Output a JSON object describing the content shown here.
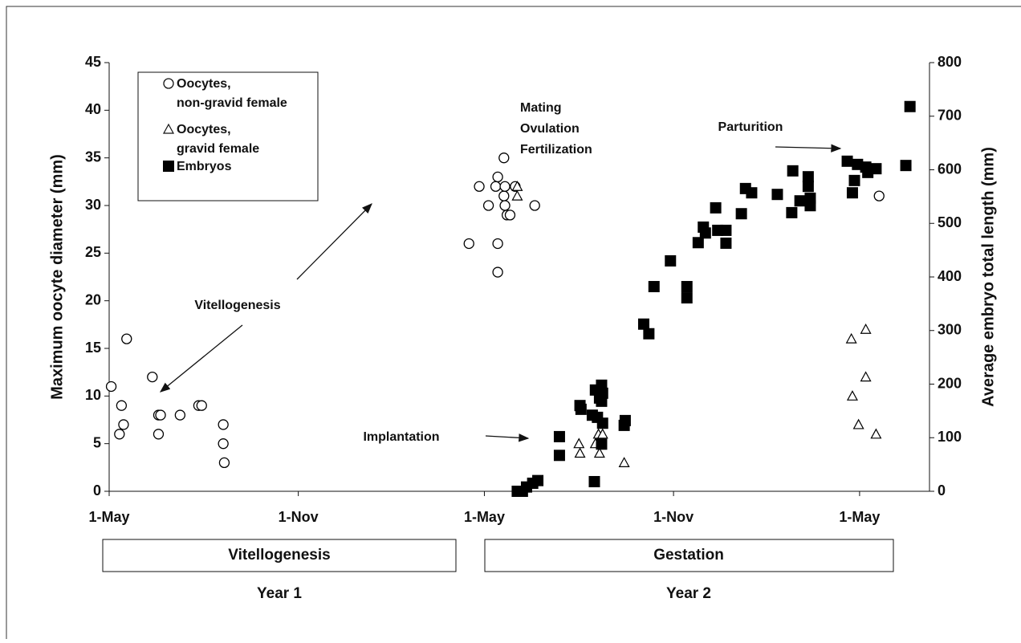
{
  "chart_data": {
    "type": "scatter",
    "ylabel": "Maximum oocyte diameter (mm)",
    "y2label": "Average embryo total length (mm)",
    "xlim": [
      0,
      798
    ],
    "xticks": [
      {
        "value": 0,
        "label": "1-May"
      },
      {
        "value": 184,
        "label": "1-Nov"
      },
      {
        "value": 365,
        "label": "1-May"
      },
      {
        "value": 549,
        "label": "1-Nov"
      },
      {
        "value": 730,
        "label": "1-May"
      }
    ],
    "ylim": [
      0,
      45
    ],
    "yticks": [
      0,
      5,
      10,
      15,
      20,
      25,
      30,
      35,
      40,
      45
    ],
    "y2lim": [
      0,
      800
    ],
    "y2ticks": [
      0,
      100,
      200,
      300,
      400,
      500,
      600,
      700,
      800
    ],
    "legend": "upper left",
    "series": [
      {
        "name": "Oocytes, non-gravid female",
        "marker": "circle",
        "color": "#000000",
        "x": [
          2,
          12,
          14,
          10,
          17,
          42,
          48,
          50,
          48,
          69,
          87,
          90,
          111,
          111,
          112,
          350,
          360,
          369,
          376,
          378,
          384,
          378,
          378,
          384,
          385,
          385,
          387,
          390,
          395,
          414,
          749
        ],
        "values": [
          11,
          9,
          7,
          6,
          16,
          12,
          8,
          8,
          6,
          8,
          9,
          9,
          7,
          5,
          3,
          26,
          32,
          30,
          32,
          33,
          35,
          26,
          23,
          31,
          32,
          30,
          29,
          29,
          32,
          30,
          31
        ]
      },
      {
        "name": "Oocytes, gravid female",
        "marker": "triangle",
        "color": "#000000",
        "x": [
          397,
          397,
          457,
          458,
          473,
          476,
          477,
          480,
          501,
          722,
          736,
          723,
          736,
          729,
          746
        ],
        "values": [
          31,
          32,
          5,
          4,
          5,
          6,
          4,
          6,
          3,
          16,
          17,
          10,
          12,
          7,
          6
        ]
      },
      {
        "name": "Embryos",
        "marker": "square",
        "color": "#000000",
        "axis": "y2",
        "x": [
          397,
          402,
          406,
          412,
          417,
          438,
          438,
          458,
          459,
          470,
          473,
          475,
          477,
          479,
          479,
          480,
          480,
          479,
          472,
          501,
          502,
          520,
          525,
          530,
          546,
          562,
          562,
          573,
          578,
          580,
          590,
          592,
          600,
          600,
          615,
          619,
          625,
          650,
          664,
          665,
          672,
          680,
          680,
          682,
          682,
          718,
          723,
          725,
          728,
          736,
          738,
          746,
          775,
          779
        ],
        "values": [
          0,
          0,
          8,
          15,
          20,
          102,
          67,
          160,
          153,
          142,
          189,
          138,
          174,
          198,
          168,
          183,
          127,
          88,
          18,
          123,
          132,
          312,
          294,
          382,
          430,
          382,
          361,
          464,
          493,
          482,
          529,
          487,
          487,
          463,
          518,
          565,
          557,
          554,
          520,
          598,
          542,
          569,
          587,
          547,
          533,
          616,
          557,
          580,
          610,
          605,
          595,
          602,
          608,
          718
        ]
      }
    ],
    "annotations": [
      {
        "text": "Vitellogenesis",
        "lines": null
      },
      {
        "text": "Mating"
      },
      {
        "text": "Ovulation"
      },
      {
        "text": "Fertilization"
      },
      {
        "text": "Implantation"
      },
      {
        "text": "Parturition"
      }
    ],
    "periods": [
      {
        "label": "Vitellogenesis",
        "year": "Year 1"
      },
      {
        "label": "Gestation",
        "year": "Year 2"
      }
    ]
  }
}
